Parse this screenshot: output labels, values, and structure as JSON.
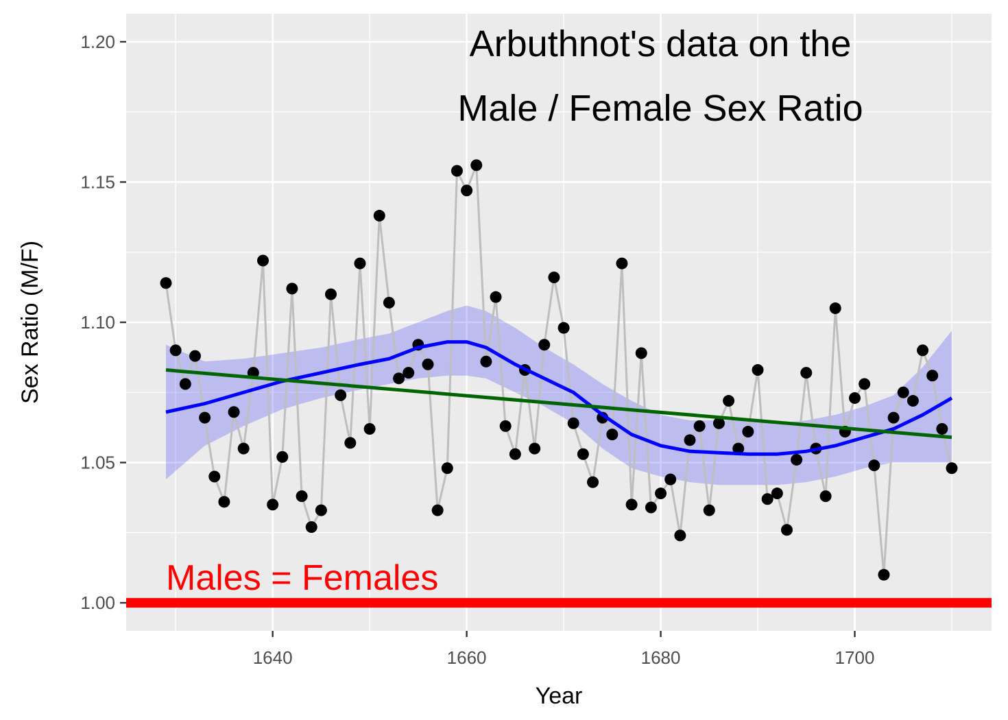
{
  "chart_data": {
    "type": "scatter",
    "title_lines": [
      "Arbuthnot's data on the",
      "Male / Female Sex Ratio"
    ],
    "xlabel": "Year",
    "ylabel": "Sex Ratio (M/F)",
    "xlim": [
      1624.9,
      1714.1
    ],
    "ylim": [
      0.99,
      1.21
    ],
    "x_ticks": [
      1640,
      1660,
      1680,
      1700
    ],
    "x_tick_labels": [
      "1640",
      "1660",
      "1680",
      "1700"
    ],
    "y_ticks": [
      1.0,
      1.05,
      1.1,
      1.15,
      1.2
    ],
    "y_tick_labels": [
      "1.00",
      "1.05",
      "1.10",
      "1.15",
      "1.20"
    ],
    "grid": true,
    "reference_line": {
      "y": 1.0,
      "color": "#ff0000",
      "label": "Males = Females"
    },
    "colors": {
      "points": "#000000",
      "connecting_line": "#bebebe",
      "loess": "#0000ff",
      "loess_band": "#0000ff",
      "linear": "#006400",
      "panel_bg": "#ebebeb",
      "grid": "#ffffff"
    },
    "points": {
      "x": [
        1629,
        1630,
        1631,
        1632,
        1633,
        1634,
        1635,
        1636,
        1637,
        1638,
        1639,
        1640,
        1641,
        1642,
        1643,
        1644,
        1645,
        1646,
        1647,
        1648,
        1649,
        1650,
        1651,
        1652,
        1653,
        1654,
        1655,
        1656,
        1657,
        1658,
        1659,
        1660,
        1661,
        1662,
        1663,
        1664,
        1665,
        1666,
        1667,
        1668,
        1669,
        1670,
        1671,
        1672,
        1673,
        1674,
        1675,
        1676,
        1677,
        1678,
        1679,
        1680,
        1681,
        1682,
        1683,
        1684,
        1685,
        1686,
        1687,
        1688,
        1689,
        1690,
        1691,
        1692,
        1693,
        1694,
        1695,
        1696,
        1697,
        1698,
        1699,
        1700,
        1701,
        1702,
        1703,
        1704,
        1705,
        1706,
        1707,
        1708,
        1709,
        1710
      ],
      "y": [
        1.114,
        1.09,
        1.078,
        1.088,
        1.066,
        1.045,
        1.036,
        1.068,
        1.055,
        1.082,
        1.122,
        1.035,
        1.052,
        1.112,
        1.038,
        1.027,
        1.033,
        1.11,
        1.074,
        1.057,
        1.121,
        1.062,
        1.138,
        1.107,
        1.08,
        1.082,
        1.092,
        1.085,
        1.033,
        1.048,
        1.154,
        1.147,
        1.156,
        1.086,
        1.109,
        1.063,
        1.053,
        1.083,
        1.055,
        1.092,
        1.116,
        1.098,
        1.064,
        1.053,
        1.043,
        1.066,
        1.06,
        1.121,
        1.035,
        1.089,
        1.034,
        1.039,
        1.044,
        1.024,
        1.058,
        1.063,
        1.033,
        1.064,
        1.072,
        1.055,
        1.061,
        1.083,
        1.037,
        1.039,
        1.026,
        1.051,
        1.082,
        1.055,
        1.038,
        1.105,
        1.061,
        1.073,
        1.078,
        1.049,
        1.01,
        1.066,
        1.075,
        1.072,
        1.09,
        1.081,
        1.062,
        1.048
      ]
    },
    "loess": {
      "x": [
        1629,
        1633,
        1637,
        1641,
        1645,
        1649,
        1652,
        1655,
        1658,
        1660,
        1662,
        1665,
        1668,
        1671,
        1674,
        1677,
        1680,
        1683,
        1686,
        1689,
        1692,
        1695,
        1698,
        1701,
        1704,
        1707,
        1710
      ],
      "y": [
        1.068,
        1.071,
        1.075,
        1.079,
        1.082,
        1.085,
        1.087,
        1.091,
        1.093,
        1.093,
        1.091,
        1.085,
        1.08,
        1.075,
        1.067,
        1.06,
        1.056,
        1.054,
        1.0535,
        1.053,
        1.053,
        1.054,
        1.056,
        1.059,
        1.062,
        1.067,
        1.073
      ],
      "lower": [
        1.044,
        1.056,
        1.063,
        1.069,
        1.073,
        1.076,
        1.078,
        1.08,
        1.081,
        1.081,
        1.08,
        1.075,
        1.07,
        1.064,
        1.055,
        1.048,
        1.045,
        1.043,
        1.042,
        1.042,
        1.042,
        1.043,
        1.045,
        1.048,
        1.05,
        1.05,
        1.05
      ],
      "upper": [
        1.092,
        1.086,
        1.087,
        1.089,
        1.091,
        1.094,
        1.096,
        1.1,
        1.104,
        1.106,
        1.104,
        1.098,
        1.091,
        1.085,
        1.078,
        1.072,
        1.067,
        1.065,
        1.065,
        1.065,
        1.064,
        1.065,
        1.067,
        1.07,
        1.074,
        1.084,
        1.097
      ]
    },
    "linear": {
      "x": [
        1629,
        1710
      ],
      "y": [
        1.083,
        1.059
      ]
    }
  }
}
